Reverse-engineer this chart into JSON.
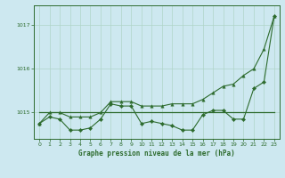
{
  "xlabel": "Graphe pression niveau de la mer (hPa)",
  "bg_color": "#cde8f0",
  "grid_color": "#b0d4c8",
  "line_color": "#2d6b2d",
  "x_values": [
    0,
    1,
    2,
    3,
    4,
    5,
    6,
    7,
    8,
    9,
    10,
    11,
    12,
    13,
    14,
    15,
    16,
    17,
    18,
    19,
    20,
    21,
    22,
    23
  ],
  "line_flat": [
    1015.0,
    1015.0,
    1015.0,
    1015.0,
    1015.0,
    1015.0,
    1015.0,
    1015.0,
    1015.0,
    1015.0,
    1015.0,
    1015.0,
    1015.0,
    1015.0,
    1015.0,
    1015.0,
    1015.0,
    1015.0,
    1015.0,
    1015.0,
    1015.0,
    1015.0,
    1015.0,
    1015.0
  ],
  "line_oscillate": [
    1014.75,
    1014.9,
    1014.85,
    1014.6,
    1014.6,
    1014.65,
    1014.85,
    1015.2,
    1015.15,
    1015.15,
    1014.75,
    1014.8,
    1014.75,
    1014.7,
    1014.6,
    1014.6,
    1014.95,
    1015.05,
    1015.05,
    1014.85,
    1014.85,
    1015.55,
    1015.7,
    1017.2
  ],
  "line_rising": [
    1014.75,
    1015.0,
    1015.0,
    1014.9,
    1014.9,
    1014.9,
    1015.0,
    1015.25,
    1015.25,
    1015.25,
    1015.15,
    1015.15,
    1015.15,
    1015.2,
    1015.2,
    1015.2,
    1015.3,
    1015.45,
    1015.6,
    1015.65,
    1015.85,
    1016.0,
    1016.45,
    1017.2
  ],
  "ylim": [
    1014.4,
    1017.45
  ],
  "yticks": [
    1015,
    1016,
    1017
  ],
  "xlim": [
    -0.5,
    23.5
  ],
  "xticks": [
    0,
    1,
    2,
    3,
    4,
    5,
    6,
    7,
    8,
    9,
    10,
    11,
    12,
    13,
    14,
    15,
    16,
    17,
    18,
    19,
    20,
    21,
    22,
    23
  ]
}
